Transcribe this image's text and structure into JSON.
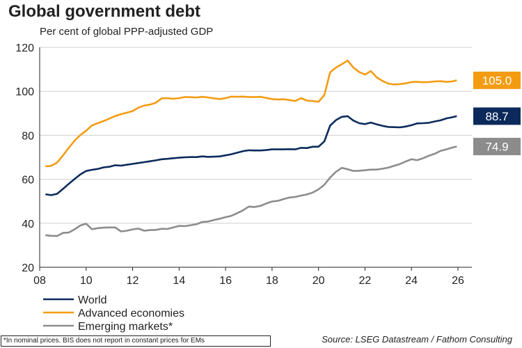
{
  "chart_data": {
    "type": "line",
    "title": "Global government debt",
    "subtitle": "Per cent of global PPP-adjusted GDP",
    "xlabel": "",
    "ylabel": "",
    "xlim": [
      2008,
      2026.6
    ],
    "ylim": [
      20,
      120
    ],
    "x_ticks": [
      8,
      10,
      12,
      14,
      16,
      18,
      20,
      22,
      24,
      26
    ],
    "x_tick_labels": [
      "08",
      "10",
      "12",
      "14",
      "16",
      "18",
      "20",
      "22",
      "24",
      "26"
    ],
    "y_ticks": [
      20,
      40,
      60,
      80,
      100,
      120
    ],
    "y_tick_labels": [
      "20",
      "40",
      "60",
      "80",
      "100",
      "120"
    ],
    "grid": "horizontal",
    "legend_position": "bottom-left",
    "series": [
      {
        "name": "World",
        "color": "#0b2a5b",
        "end_label": "88.7",
        "points": [
          [
            2008.25,
            53.2
          ],
          [
            2008.5,
            52.8
          ],
          [
            2008.75,
            53.4
          ],
          [
            2009.0,
            55.6
          ],
          [
            2009.25,
            57.9
          ],
          [
            2009.5,
            60.1
          ],
          [
            2009.75,
            62.2
          ],
          [
            2010.0,
            63.8
          ],
          [
            2010.25,
            64.3
          ],
          [
            2010.5,
            64.7
          ],
          [
            2010.75,
            65.4
          ],
          [
            2011.0,
            65.7
          ],
          [
            2011.25,
            66.4
          ],
          [
            2011.5,
            66.2
          ],
          [
            2011.75,
            66.6
          ],
          [
            2012.0,
            67.0
          ],
          [
            2012.25,
            67.4
          ],
          [
            2012.5,
            67.8
          ],
          [
            2012.75,
            68.2
          ],
          [
            2013.0,
            68.6
          ],
          [
            2013.25,
            69.1
          ],
          [
            2013.5,
            69.3
          ],
          [
            2013.75,
            69.6
          ],
          [
            2014.0,
            69.8
          ],
          [
            2014.25,
            70.0
          ],
          [
            2014.5,
            70.1
          ],
          [
            2014.75,
            70.1
          ],
          [
            2015.0,
            70.4
          ],
          [
            2015.25,
            70.2
          ],
          [
            2015.5,
            70.3
          ],
          [
            2015.75,
            70.4
          ],
          [
            2016.0,
            70.9
          ],
          [
            2016.25,
            71.4
          ],
          [
            2016.5,
            72.1
          ],
          [
            2016.75,
            72.8
          ],
          [
            2017.0,
            73.2
          ],
          [
            2017.25,
            73.1
          ],
          [
            2017.5,
            73.1
          ],
          [
            2017.75,
            73.3
          ],
          [
            2018.0,
            73.6
          ],
          [
            2018.25,
            73.6
          ],
          [
            2018.5,
            73.6
          ],
          [
            2018.75,
            73.7
          ],
          [
            2019.0,
            73.6
          ],
          [
            2019.25,
            74.3
          ],
          [
            2019.5,
            74.2
          ],
          [
            2019.75,
            74.8
          ],
          [
            2020.0,
            74.8
          ],
          [
            2020.25,
            77.2
          ],
          [
            2020.5,
            84.4
          ],
          [
            2020.75,
            86.9
          ],
          [
            2021.0,
            88.4
          ],
          [
            2021.25,
            88.7
          ],
          [
            2021.5,
            86.7
          ],
          [
            2021.75,
            85.5
          ],
          [
            2022.0,
            85.1
          ],
          [
            2022.25,
            85.8
          ],
          [
            2022.5,
            85.0
          ],
          [
            2022.75,
            84.3
          ],
          [
            2023.0,
            83.8
          ],
          [
            2023.25,
            83.7
          ],
          [
            2023.5,
            83.6
          ],
          [
            2023.75,
            84.0
          ],
          [
            2024.0,
            84.6
          ],
          [
            2024.25,
            85.4
          ],
          [
            2024.5,
            85.5
          ],
          [
            2024.75,
            85.7
          ],
          [
            2025.0,
            86.3
          ],
          [
            2025.25,
            86.8
          ],
          [
            2025.5,
            87.7
          ],
          [
            2025.75,
            88.2
          ],
          [
            2025.95,
            88.7
          ]
        ]
      },
      {
        "name": "Advanced economies",
        "color": "#f39c12",
        "end_label": "105.0",
        "points": [
          [
            2008.25,
            65.9
          ],
          [
            2008.5,
            66.1
          ],
          [
            2008.75,
            67.6
          ],
          [
            2009.0,
            70.8
          ],
          [
            2009.25,
            74.3
          ],
          [
            2009.5,
            77.5
          ],
          [
            2009.75,
            80.1
          ],
          [
            2010.0,
            82.1
          ],
          [
            2010.25,
            84.5
          ],
          [
            2010.5,
            85.5
          ],
          [
            2010.75,
            86.5
          ],
          [
            2011.0,
            87.6
          ],
          [
            2011.25,
            88.8
          ],
          [
            2011.5,
            89.6
          ],
          [
            2011.75,
            90.3
          ],
          [
            2012.0,
            91.0
          ],
          [
            2012.25,
            92.6
          ],
          [
            2012.5,
            93.5
          ],
          [
            2012.75,
            94.0
          ],
          [
            2013.0,
            94.8
          ],
          [
            2013.25,
            96.8
          ],
          [
            2013.5,
            96.9
          ],
          [
            2013.75,
            96.6
          ],
          [
            2014.0,
            96.9
          ],
          [
            2014.25,
            97.4
          ],
          [
            2014.5,
            97.3
          ],
          [
            2014.75,
            97.2
          ],
          [
            2015.0,
            97.5
          ],
          [
            2015.25,
            97.2
          ],
          [
            2015.5,
            96.8
          ],
          [
            2015.75,
            96.5
          ],
          [
            2016.0,
            96.9
          ],
          [
            2016.25,
            97.6
          ],
          [
            2016.5,
            97.5
          ],
          [
            2016.75,
            97.6
          ],
          [
            2017.0,
            97.4
          ],
          [
            2017.25,
            97.4
          ],
          [
            2017.5,
            97.5
          ],
          [
            2017.75,
            97.0
          ],
          [
            2018.0,
            96.5
          ],
          [
            2018.25,
            96.3
          ],
          [
            2018.5,
            96.4
          ],
          [
            2018.75,
            96.0
          ],
          [
            2019.0,
            95.6
          ],
          [
            2019.25,
            96.9
          ],
          [
            2019.5,
            95.8
          ],
          [
            2019.75,
            95.6
          ],
          [
            2020.0,
            95.2
          ],
          [
            2020.25,
            98.3
          ],
          [
            2020.5,
            108.6
          ],
          [
            2020.75,
            110.8
          ],
          [
            2021.0,
            112.3
          ],
          [
            2021.25,
            114.0
          ],
          [
            2021.5,
            110.8
          ],
          [
            2021.75,
            108.8
          ],
          [
            2022.0,
            107.6
          ],
          [
            2022.25,
            109.2
          ],
          [
            2022.5,
            106.4
          ],
          [
            2022.75,
            104.7
          ],
          [
            2023.0,
            103.5
          ],
          [
            2023.25,
            103.1
          ],
          [
            2023.5,
            103.3
          ],
          [
            2023.75,
            103.6
          ],
          [
            2024.0,
            104.2
          ],
          [
            2024.25,
            104.3
          ],
          [
            2024.5,
            104.1
          ],
          [
            2024.75,
            104.2
          ],
          [
            2025.0,
            104.5
          ],
          [
            2025.25,
            104.6
          ],
          [
            2025.5,
            104.3
          ],
          [
            2025.75,
            104.5
          ],
          [
            2025.95,
            105.0
          ]
        ]
      },
      {
        "name": "Emerging markets*",
        "color": "#8c8c8c",
        "end_label": "74.9",
        "points": [
          [
            2008.25,
            34.6
          ],
          [
            2008.5,
            34.3
          ],
          [
            2008.75,
            34.2
          ],
          [
            2009.0,
            35.6
          ],
          [
            2009.25,
            35.8
          ],
          [
            2009.5,
            37.2
          ],
          [
            2009.75,
            39.0
          ],
          [
            2010.0,
            39.8
          ],
          [
            2010.25,
            37.3
          ],
          [
            2010.5,
            37.8
          ],
          [
            2010.75,
            38.0
          ],
          [
            2011.0,
            38.1
          ],
          [
            2011.25,
            38.1
          ],
          [
            2011.5,
            36.3
          ],
          [
            2011.75,
            36.6
          ],
          [
            2012.0,
            37.2
          ],
          [
            2012.25,
            37.6
          ],
          [
            2012.5,
            36.6
          ],
          [
            2012.75,
            36.9
          ],
          [
            2013.0,
            37.0
          ],
          [
            2013.25,
            37.5
          ],
          [
            2013.5,
            37.4
          ],
          [
            2013.75,
            38.1
          ],
          [
            2014.0,
            38.8
          ],
          [
            2014.25,
            38.7
          ],
          [
            2014.5,
            39.1
          ],
          [
            2014.75,
            39.6
          ],
          [
            2015.0,
            40.6
          ],
          [
            2015.25,
            40.8
          ],
          [
            2015.5,
            41.5
          ],
          [
            2015.75,
            42.1
          ],
          [
            2016.0,
            42.8
          ],
          [
            2016.25,
            43.4
          ],
          [
            2016.5,
            44.6
          ],
          [
            2016.75,
            45.9
          ],
          [
            2017.0,
            47.6
          ],
          [
            2017.25,
            47.4
          ],
          [
            2017.5,
            47.9
          ],
          [
            2017.75,
            49.0
          ],
          [
            2018.0,
            49.9
          ],
          [
            2018.25,
            50.2
          ],
          [
            2018.5,
            51.0
          ],
          [
            2018.75,
            51.7
          ],
          [
            2019.0,
            52.0
          ],
          [
            2019.25,
            52.6
          ],
          [
            2019.5,
            53.1
          ],
          [
            2019.75,
            54.0
          ],
          [
            2020.0,
            55.4
          ],
          [
            2020.25,
            57.5
          ],
          [
            2020.5,
            60.8
          ],
          [
            2020.75,
            63.4
          ],
          [
            2021.0,
            65.2
          ],
          [
            2021.25,
            64.6
          ],
          [
            2021.5,
            63.8
          ],
          [
            2021.75,
            63.9
          ],
          [
            2022.0,
            64.1
          ],
          [
            2022.25,
            64.4
          ],
          [
            2022.5,
            64.4
          ],
          [
            2022.75,
            64.8
          ],
          [
            2023.0,
            65.3
          ],
          [
            2023.25,
            66.1
          ],
          [
            2023.5,
            66.9
          ],
          [
            2023.75,
            68.1
          ],
          [
            2024.0,
            69.1
          ],
          [
            2024.25,
            68.7
          ],
          [
            2024.5,
            69.6
          ],
          [
            2024.75,
            70.7
          ],
          [
            2025.0,
            71.6
          ],
          [
            2025.25,
            72.9
          ],
          [
            2025.5,
            73.6
          ],
          [
            2025.75,
            74.4
          ],
          [
            2025.95,
            74.9
          ]
        ]
      }
    ]
  },
  "footnote": "*In nominal prices. BIS does not report in  constant prices for EMs",
  "source": "Source: LSEG Datastream / Fathom Consulting"
}
